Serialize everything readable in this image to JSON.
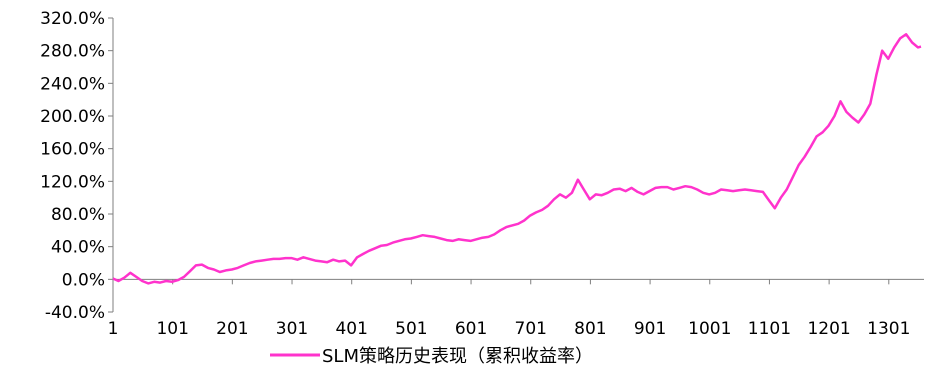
{
  "chart_data": {
    "type": "line",
    "title": "",
    "xlabel": "",
    "ylabel": "",
    "ylim": [
      -40,
      320
    ],
    "yticks": [
      "320.0%",
      "280.0%",
      "240.0%",
      "200.0%",
      "160.0%",
      "120.0%",
      "80.0%",
      "40.0%",
      "0.0%",
      "-40.0%"
    ],
    "ytick_values": [
      320,
      280,
      240,
      200,
      160,
      120,
      80,
      40,
      0,
      -40
    ],
    "xlim": [
      1,
      1360
    ],
    "xticks": [
      "1",
      "101",
      "201",
      "301",
      "401",
      "501",
      "601",
      "701",
      "801",
      "901",
      "1001",
      "1101",
      "1201",
      "1301"
    ],
    "xtick_values": [
      1,
      101,
      201,
      301,
      401,
      501,
      601,
      701,
      801,
      901,
      1001,
      1101,
      1201,
      1301
    ],
    "grid": false,
    "legend_position": "bottom",
    "series": [
      {
        "name": "SLM策略历史表现（累积收益率）",
        "color": "#ff33cc",
        "x": [
          1,
          10,
          20,
          30,
          40,
          50,
          60,
          70,
          80,
          90,
          100,
          110,
          120,
          130,
          140,
          150,
          160,
          170,
          180,
          190,
          200,
          210,
          220,
          230,
          240,
          250,
          260,
          270,
          280,
          290,
          300,
          310,
          320,
          330,
          340,
          350,
          360,
          370,
          380,
          390,
          400,
          410,
          420,
          430,
          440,
          450,
          460,
          470,
          480,
          490,
          500,
          510,
          520,
          530,
          540,
          550,
          560,
          570,
          580,
          590,
          600,
          610,
          620,
          630,
          640,
          650,
          660,
          670,
          680,
          690,
          700,
          710,
          720,
          730,
          740,
          750,
          760,
          770,
          780,
          790,
          800,
          810,
          820,
          830,
          840,
          850,
          860,
          870,
          880,
          890,
          900,
          910,
          920,
          930,
          940,
          950,
          960,
          970,
          980,
          990,
          1000,
          1010,
          1020,
          1030,
          1040,
          1050,
          1060,
          1070,
          1080,
          1090,
          1100,
          1110,
          1120,
          1130,
          1140,
          1150,
          1160,
          1170,
          1180,
          1190,
          1200,
          1210,
          1220,
          1230,
          1240,
          1250,
          1260,
          1270,
          1280,
          1290,
          1300,
          1310,
          1320,
          1330,
          1340,
          1350,
          1355
        ],
        "values": [
          1,
          -2,
          2,
          8,
          3,
          -2,
          -5,
          -3,
          -4,
          -2,
          -3,
          -1,
          3,
          10,
          17,
          18,
          14,
          12,
          9,
          11,
          12,
          14,
          17,
          20,
          22,
          23,
          24,
          25,
          25,
          26,
          26,
          24,
          27,
          25,
          23,
          22,
          21,
          24,
          22,
          23,
          17,
          27,
          31,
          35,
          38,
          41,
          42,
          45,
          47,
          49,
          50,
          52,
          54,
          53,
          52,
          50,
          48,
          47,
          49,
          48,
          47,
          49,
          51,
          52,
          55,
          60,
          64,
          66,
          68,
          72,
          78,
          82,
          85,
          90,
          98,
          104,
          100,
          106,
          122,
          110,
          98,
          104,
          103,
          106,
          110,
          111,
          108,
          112,
          107,
          104,
          108,
          112,
          113,
          113,
          110,
          112,
          114,
          113,
          110,
          106,
          104,
          106,
          110,
          109,
          108,
          109,
          110,
          109,
          108,
          107,
          97,
          87,
          100,
          110,
          125,
          140,
          150,
          162,
          175,
          180,
          188,
          200,
          218,
          205,
          198,
          192,
          202,
          215,
          250,
          280,
          270,
          284,
          295,
          300,
          290,
          284,
          285
        ]
      }
    ]
  }
}
